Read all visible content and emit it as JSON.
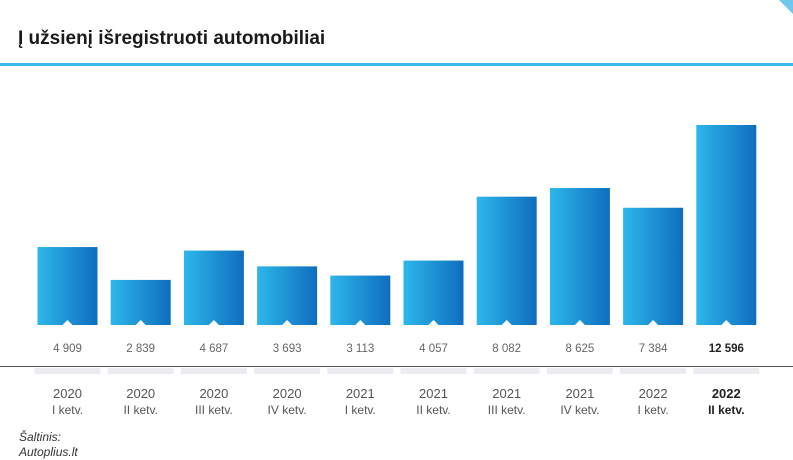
{
  "title": "Į užsienį išregistruoti automobiliai",
  "source": {
    "line1": "Šaltinis:",
    "line2": "Autoplius.lt"
  },
  "colors": {
    "bar_top": "#2db7ea",
    "bar_bottom": "#0f6dbf",
    "accent": "#3db8ea"
  },
  "chart_data": {
    "type": "bar",
    "title": "Į užsienį išregistruoti automobiliai",
    "categories": [
      {
        "year": "2020",
        "quarter": "I ketv."
      },
      {
        "year": "2020",
        "quarter": "II ketv."
      },
      {
        "year": "2020",
        "quarter": "III ketv."
      },
      {
        "year": "2020",
        "quarter": "IV ketv."
      },
      {
        "year": "2021",
        "quarter": "I ketv."
      },
      {
        "year": "2021",
        "quarter": "II ketv."
      },
      {
        "year": "2021",
        "quarter": "III ketv."
      },
      {
        "year": "2021",
        "quarter": "IV ketv."
      },
      {
        "year": "2022",
        "quarter": "I ketv."
      },
      {
        "year": "2022",
        "quarter": "II ketv."
      }
    ],
    "values": [
      4909,
      2839,
      4687,
      3693,
      3113,
      4057,
      8082,
      8625,
      7384,
      12596
    ],
    "value_labels": [
      "4 909",
      "2 839",
      "4 687",
      "3 693",
      "3 113",
      "4 057",
      "8 082",
      "8 625",
      "7 384",
      "12 596"
    ],
    "highlight_last": true,
    "grid": false
  }
}
